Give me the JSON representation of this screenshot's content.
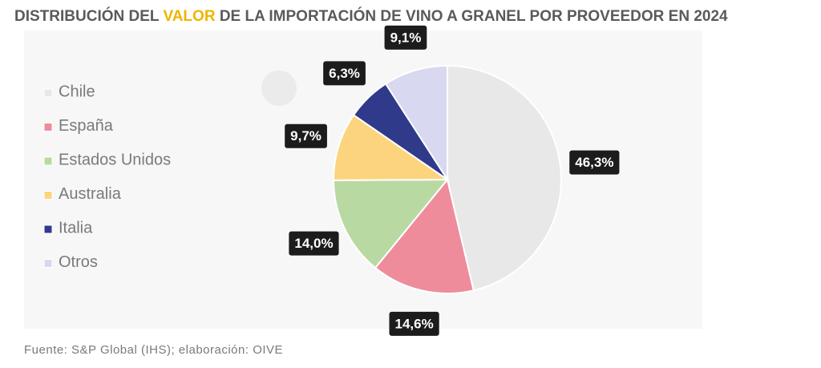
{
  "chart_data": {
    "type": "pie",
    "title": [
      "DISTRIBUCIÓN DEL",
      "VALOR",
      "DE LA IMPORTACIÓN  DE VINO A GRANEL POR PROVEEDOR EN 2024"
    ],
    "title_highlight_color": "#f0b400",
    "categories": [
      "Chile",
      "España",
      "Estados Unidos",
      "Australia",
      "Italia",
      "Otros"
    ],
    "values": [
      46.3,
      14.6,
      14.0,
      9.7,
      6.3,
      9.1
    ],
    "value_labels": [
      "46,3%",
      "14,6%",
      "14,0%",
      "9,7%",
      "6,3%",
      "9,1%"
    ],
    "colors": [
      "#e8e8e8",
      "#ee8c9c",
      "#b9d9a3",
      "#fdd47e",
      "#303a8a",
      "#d8d8f0"
    ],
    "source": "Fuente:  S&P Global  (IHS); elaboración:  OIVE"
  }
}
